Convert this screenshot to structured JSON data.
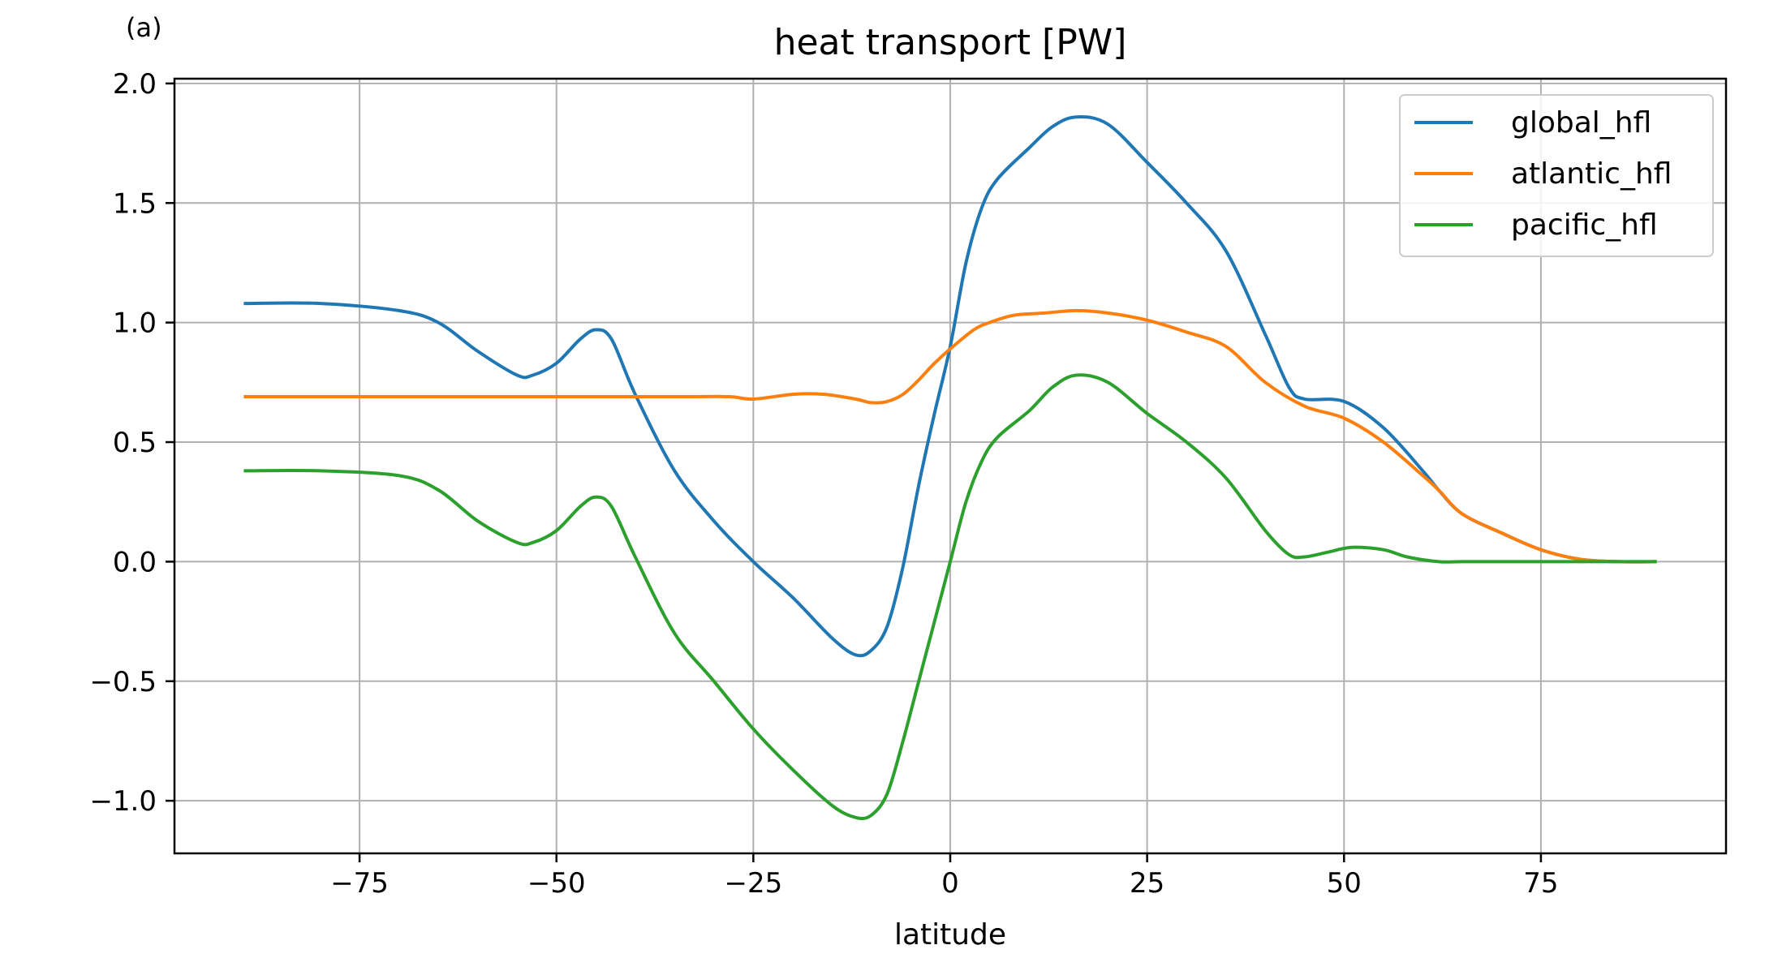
{
  "panel_label": "(a)",
  "chart_data": {
    "type": "line",
    "title": "heat transport [PW]",
    "xlabel": "latitude",
    "ylabel": "",
    "xlim": [
      -98.5,
      98.5
    ],
    "ylim": [
      -1.22,
      2.02
    ],
    "xticks": [
      -75,
      -50,
      -25,
      0,
      25,
      50,
      75
    ],
    "xtick_labels": [
      "−75",
      "−50",
      "−25",
      "0",
      "25",
      "50",
      "75"
    ],
    "yticks": [
      2.0,
      1.5,
      1.0,
      0.5,
      0.0,
      -0.5,
      -1.0
    ],
    "ytick_labels": [
      "2.0",
      "1.5",
      "1.0",
      "0.5",
      "0.0",
      "−0.5",
      "−1.0"
    ],
    "grid": true,
    "legend_position": "top-right",
    "series": [
      {
        "name": "global_hfl",
        "color": "#1f77b4",
        "x": [
          -89.5,
          -80,
          -70,
          -65,
          -60,
          -55,
          -53,
          -50,
          -47,
          -45,
          -43,
          -40,
          -35,
          -30,
          -25,
          -20,
          -15,
          -12,
          -10,
          -8,
          -6,
          -4,
          -2,
          0,
          2,
          4,
          6,
          10,
          13,
          16,
          20,
          25,
          30,
          35,
          40,
          43,
          45,
          50,
          55,
          60,
          62,
          65,
          70,
          75,
          80,
          85,
          89.5
        ],
        "y": [
          1.08,
          1.08,
          1.05,
          1.0,
          0.88,
          0.78,
          0.78,
          0.83,
          0.93,
          0.97,
          0.93,
          0.7,
          0.38,
          0.17,
          0.0,
          -0.15,
          -0.32,
          -0.39,
          -0.37,
          -0.27,
          -0.02,
          0.32,
          0.62,
          0.9,
          1.25,
          1.48,
          1.6,
          1.73,
          1.82,
          1.86,
          1.83,
          1.67,
          1.5,
          1.3,
          0.95,
          0.73,
          0.68,
          0.67,
          0.56,
          0.38,
          0.3,
          0.2,
          0.12,
          0.05,
          0.01,
          0.0,
          0.0
        ]
      },
      {
        "name": "atlantic_hfl",
        "color": "#ff7f0e",
        "x": [
          -89.5,
          -80,
          -70,
          -60,
          -50,
          -40,
          -33,
          -28,
          -25,
          -20,
          -16,
          -12,
          -10,
          -8,
          -6,
          -4,
          -2,
          0,
          3,
          5,
          8,
          12,
          16,
          20,
          25,
          30,
          35,
          40,
          45,
          50,
          55,
          60,
          62,
          65,
          70,
          75,
          80,
          85,
          89.5
        ],
        "y": [
          0.69,
          0.69,
          0.69,
          0.69,
          0.69,
          0.69,
          0.69,
          0.69,
          0.68,
          0.7,
          0.7,
          0.68,
          0.665,
          0.67,
          0.7,
          0.76,
          0.83,
          0.89,
          0.97,
          1.0,
          1.03,
          1.04,
          1.05,
          1.04,
          1.01,
          0.96,
          0.9,
          0.75,
          0.65,
          0.6,
          0.5,
          0.36,
          0.3,
          0.2,
          0.12,
          0.05,
          0.01,
          0.0,
          0.0
        ]
      },
      {
        "name": "pacific_hfl",
        "color": "#2ca02c",
        "x": [
          -89.5,
          -80,
          -70,
          -65,
          -60,
          -55,
          -53,
          -50,
          -47,
          -45,
          -43,
          -40,
          -35,
          -30,
          -25,
          -20,
          -15,
          -12,
          -10,
          -8,
          -6,
          -4,
          -2,
          0,
          2,
          4,
          6,
          10,
          13,
          16,
          20,
          25,
          30,
          35,
          40,
          43,
          45,
          48,
          51,
          55,
          58,
          62,
          65,
          70,
          75,
          80,
          85,
          89.5
        ],
        "y": [
          0.38,
          0.38,
          0.36,
          0.3,
          0.17,
          0.08,
          0.08,
          0.13,
          0.23,
          0.27,
          0.23,
          0.02,
          -0.3,
          -0.5,
          -0.7,
          -0.87,
          -1.02,
          -1.07,
          -1.06,
          -0.97,
          -0.75,
          -0.5,
          -0.25,
          0.0,
          0.25,
          0.42,
          0.52,
          0.63,
          0.73,
          0.78,
          0.75,
          0.62,
          0.5,
          0.35,
          0.13,
          0.03,
          0.02,
          0.04,
          0.06,
          0.05,
          0.02,
          0.0,
          0.0,
          0.0,
          0.0,
          0.0,
          0.0,
          0.0
        ]
      }
    ]
  }
}
